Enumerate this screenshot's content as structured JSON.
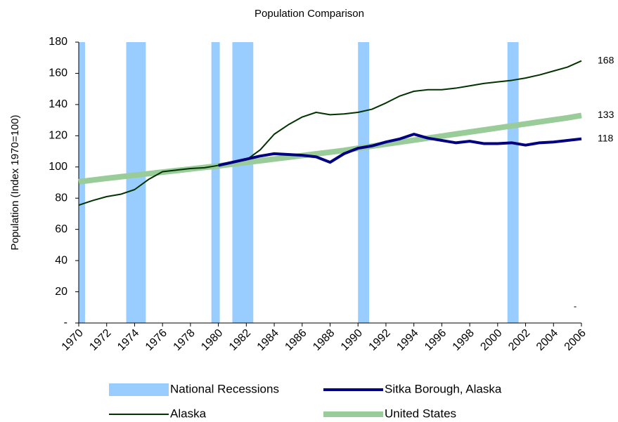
{
  "chart_data": {
    "type": "line",
    "title": "Population Comparison",
    "y_label": "Population (Index 1970=100)",
    "annotation": "-",
    "x": [
      1970,
      1971,
      1972,
      1973,
      1974,
      1975,
      1976,
      1977,
      1978,
      1979,
      1980,
      1981,
      1982,
      1983,
      1984,
      1985,
      1986,
      1987,
      1988,
      1989,
      1990,
      1991,
      1992,
      1993,
      1994,
      1995,
      1996,
      1997,
      1998,
      1999,
      2000,
      2001,
      2002,
      2003,
      2004,
      2005,
      2006
    ],
    "xlim": [
      1970,
      2006
    ],
    "xticks": [
      1970,
      1972,
      1974,
      1976,
      1978,
      1980,
      1982,
      1984,
      1986,
      1988,
      1990,
      1992,
      1994,
      1996,
      1998,
      2000,
      2002,
      2004,
      2006
    ],
    "ylim": [
      0,
      180
    ],
    "yticks": [
      {
        "value": 0,
        "label": "-"
      },
      20,
      40,
      60,
      80,
      100,
      120,
      140,
      160,
      180
    ],
    "recessions": {
      "name": "National Recessions",
      "color": "#99ccff",
      "spans": [
        [
          1970.0,
          1970.45
        ],
        [
          1973.4,
          1974.8
        ],
        [
          1979.5,
          1980.1
        ],
        [
          1981.0,
          1982.5
        ],
        [
          1990.0,
          1990.8
        ],
        [
          2000.7,
          2001.5
        ]
      ]
    },
    "series": [
      {
        "name": "Sitka Borough, Alaska",
        "color": "#000080",
        "width": 4,
        "values": [
          null,
          null,
          null,
          null,
          null,
          null,
          null,
          null,
          null,
          null,
          101,
          103,
          105,
          107,
          108.5,
          108,
          107.5,
          106.5,
          103,
          108.5,
          112,
          113.5,
          116,
          118,
          121,
          118.5,
          117,
          115.5,
          116.5,
          115,
          115,
          115.5,
          114,
          115.5,
          116,
          117,
          118
        ]
      },
      {
        "name": "Alaska",
        "color": "#003300",
        "width": 2,
        "values": [
          75.5,
          78.5,
          81,
          82.5,
          85.5,
          92,
          97,
          98,
          99,
          99.5,
          101,
          103,
          104.5,
          111,
          121,
          127,
          132,
          135,
          133.5,
          134,
          135,
          137,
          141,
          145.5,
          148.5,
          149.5,
          149.5,
          150.5,
          152,
          153.5,
          154.5,
          155.5,
          157,
          159,
          161.5,
          164,
          168
        ]
      },
      {
        "name": "United States",
        "color": "#99cc99",
        "width": 8,
        "values": [
          90.5,
          91.6,
          92.7,
          93.7,
          94.7,
          95.7,
          96.7,
          97.7,
          98.7,
          99.7,
          100.7,
          101.8,
          102.9,
          104,
          105.1,
          106.2,
          107.3,
          108.4,
          109.5,
          110.6,
          112,
          113.3,
          114.6,
          115.9,
          117.2,
          118.5,
          119.8,
          121.1,
          122.4,
          123.7,
          125,
          126.3,
          127.6,
          128.9,
          130.2,
          131.5,
          133
        ]
      }
    ]
  }
}
